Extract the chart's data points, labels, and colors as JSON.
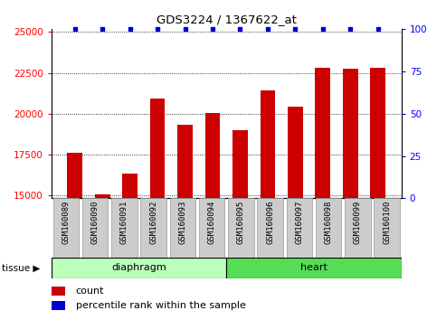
{
  "title": "GDS3224 / 1367622_at",
  "samples": [
    "GSM160089",
    "GSM160090",
    "GSM160091",
    "GSM160092",
    "GSM160093",
    "GSM160094",
    "GSM160095",
    "GSM160096",
    "GSM160097",
    "GSM160098",
    "GSM160099",
    "GSM160100"
  ],
  "counts": [
    17600,
    15050,
    16350,
    20900,
    19300,
    20050,
    19000,
    21400,
    20400,
    22800,
    22750,
    22800
  ],
  "percentile": [
    100,
    100,
    100,
    100,
    100,
    100,
    100,
    100,
    100,
    100,
    100,
    100
  ],
  "ylim_left": [
    14800,
    25200
  ],
  "ylim_right": [
    0,
    100
  ],
  "yticks_left": [
    15000,
    17500,
    20000,
    22500,
    25000
  ],
  "yticks_right": [
    0,
    25,
    50,
    75,
    100
  ],
  "bar_color": "#cc0000",
  "dot_color": "#0000cc",
  "bar_bottom": 14800,
  "tissue_groups": [
    {
      "label": "diaphragm",
      "start": 0,
      "end": 6,
      "color": "#bbffbb"
    },
    {
      "label": "heart",
      "start": 6,
      "end": 12,
      "color": "#55dd55"
    }
  ],
  "tissue_label": "tissue",
  "legend_count_label": "count",
  "legend_pct_label": "percentile rank within the sample",
  "xlabels_bg": "#cccccc",
  "xlabels_border": "#999999"
}
